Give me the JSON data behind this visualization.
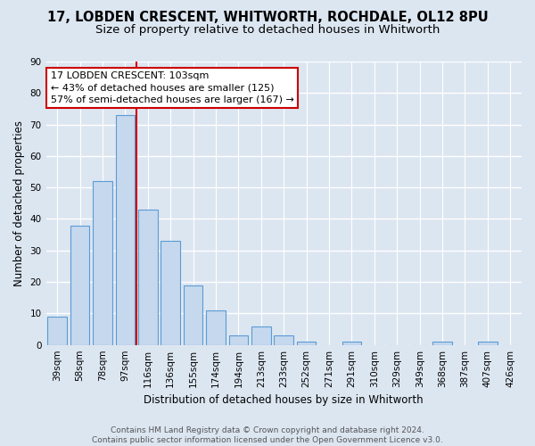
{
  "title1": "17, LOBDEN CRESCENT, WHITWORTH, ROCHDALE, OL12 8PU",
  "title2": "Size of property relative to detached houses in Whitworth",
  "xlabel": "Distribution of detached houses by size in Whitworth",
  "ylabel": "Number of detached properties",
  "categories": [
    "39sqm",
    "58sqm",
    "78sqm",
    "97sqm",
    "116sqm",
    "136sqm",
    "155sqm",
    "174sqm",
    "194sqm",
    "213sqm",
    "233sqm",
    "252sqm",
    "271sqm",
    "291sqm",
    "310sqm",
    "329sqm",
    "349sqm",
    "368sqm",
    "387sqm",
    "407sqm",
    "426sqm"
  ],
  "values": [
    9,
    38,
    52,
    73,
    43,
    33,
    19,
    11,
    3,
    6,
    3,
    1,
    0,
    1,
    0,
    0,
    0,
    1,
    0,
    1,
    0
  ],
  "bar_color": "#c5d8ed",
  "bar_edge_color": "#5b9bd5",
  "background_color": "#dce6f1",
  "grid_color": "#ffffff",
  "vline_index": 3.5,
  "vline_color": "#cc0000",
  "annotation_line1": "17 LOBDEN CRESCENT: 103sqm",
  "annotation_line2": "← 43% of detached houses are smaller (125)",
  "annotation_line3": "57% of semi-detached houses are larger (167) →",
  "annotation_box_color": "#ffffff",
  "annotation_box_edge_color": "#cc0000",
  "ylim": [
    0,
    90
  ],
  "yticks": [
    0,
    10,
    20,
    30,
    40,
    50,
    60,
    70,
    80,
    90
  ],
  "footer_text": "Contains HM Land Registry data © Crown copyright and database right 2024.\nContains public sector information licensed under the Open Government Licence v3.0.",
  "title_fontsize": 10.5,
  "subtitle_fontsize": 9.5,
  "axis_label_fontsize": 8.5,
  "tick_fontsize": 7.5,
  "annotation_fontsize": 8,
  "footer_fontsize": 6.5
}
